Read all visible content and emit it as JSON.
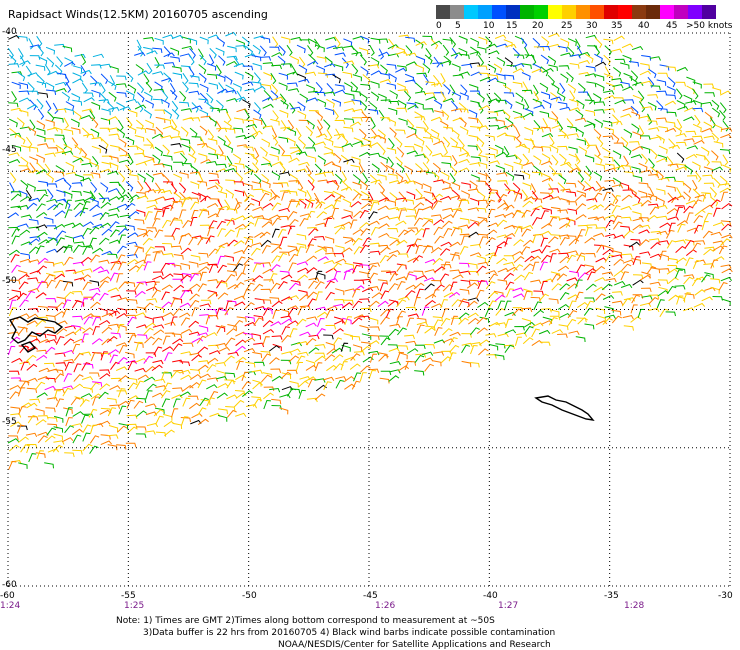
{
  "title": "Rapidsact Winds(12.5KM) 20160705 ascending",
  "colorbar": {
    "colors": [
      "#4a4a4a",
      "#8c8c8c",
      "#00c8ff",
      "#00a0ff",
      "#0050ff",
      "#0030c0",
      "#00b400",
      "#00d000",
      "#ffff00",
      "#ffd000",
      "#ff9000",
      "#ff5000",
      "#e00000",
      "#ff0000",
      "#8b3a10",
      "#6b2a0a",
      "#ff00ff",
      "#c000c0",
      "#8000ff",
      "#5000a0"
    ],
    "labels": [
      "0",
      "5",
      "10",
      "15",
      "20",
      "25",
      "30",
      "35",
      "40",
      "45",
      ">50 knots"
    ]
  },
  "axes": {
    "latitudes": [
      "-40",
      "-45",
      "-50",
      "-55",
      "-60"
    ],
    "longitudes": [
      "-60",
      "-55",
      "-50",
      "-45",
      "-40",
      "-35",
      "-30"
    ],
    "times": [
      "1:24",
      "1:25",
      "1:26",
      "1:27",
      "1:28"
    ]
  },
  "notes": {
    "line1": "Note: 1) Times are GMT 2)Times along bottom correspond to measurement at ~50S",
    "line2": "3)Data buffer is 22 hrs from 20160705 4) Black wind barbs indicate possible contamination",
    "line3": "NOAA/NESDIS/Center for Satellite Applications and Research"
  },
  "legend_colors": {
    "blue": "#0050ff",
    "cyan": "#00b0e0",
    "green": "#00b400",
    "yellow": "#ffd000",
    "orange": "#ff8000",
    "red": "#ff0000",
    "magenta": "#ff00ff"
  }
}
